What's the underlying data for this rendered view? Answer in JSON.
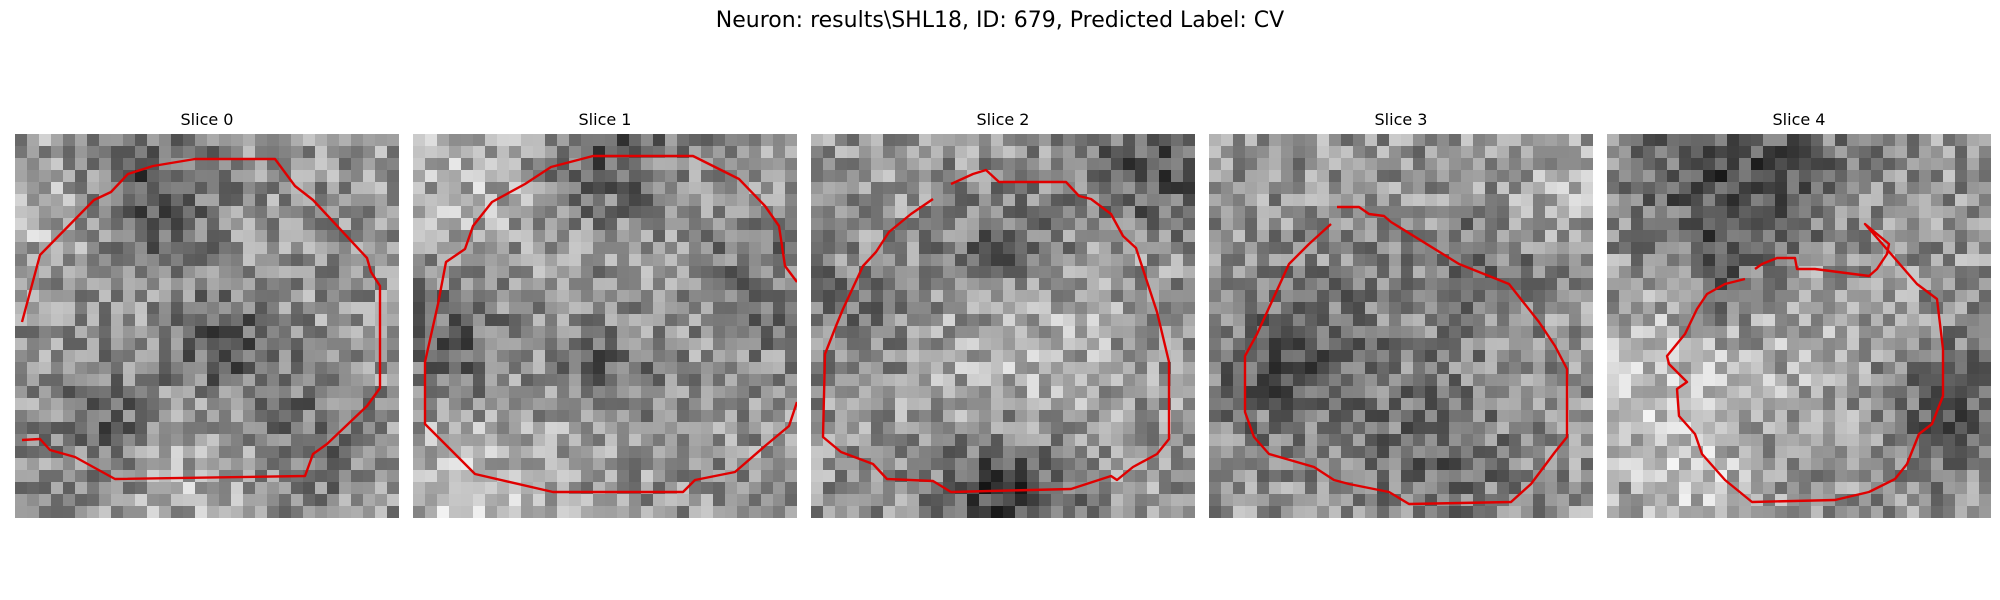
{
  "title": "Neuron: results\\SHL18, ID: 679, Predicted Label: CV",
  "contour_color": "#e00000",
  "panels": [
    {
      "title": "Slice 0",
      "seed": 11,
      "blobs": [
        [
          0.35,
          0.15,
          0.12,
          -70
        ],
        [
          0.55,
          0.55,
          0.1,
          -60
        ],
        [
          0.25,
          0.75,
          0.1,
          -50
        ],
        [
          0.75,
          0.8,
          0.12,
          -45
        ],
        [
          0.5,
          0.9,
          0.15,
          30
        ],
        [
          0.05,
          0.2,
          0.12,
          35
        ]
      ]
    },
    {
      "title": "Slice 1",
      "seed": 23,
      "blobs": [
        [
          0.5,
          0.05,
          0.12,
          -60
        ],
        [
          0.1,
          0.55,
          0.12,
          -55
        ],
        [
          0.5,
          0.62,
          0.08,
          -55
        ],
        [
          0.9,
          0.4,
          0.12,
          -40
        ],
        [
          0.1,
          0.95,
          0.2,
          40
        ],
        [
          0.15,
          0.1,
          0.15,
          30
        ]
      ]
    },
    {
      "title": "Slice 2",
      "seed": 37,
      "blobs": [
        [
          0.5,
          0.3,
          0.12,
          -55
        ],
        [
          0.5,
          0.95,
          0.12,
          -90
        ],
        [
          0.9,
          0.08,
          0.12,
          -70
        ],
        [
          0.1,
          0.45,
          0.1,
          -40
        ],
        [
          0.55,
          0.55,
          0.18,
          35
        ]
      ]
    },
    {
      "title": "Slice 3",
      "seed": 51,
      "blobs": [
        [
          0.2,
          0.6,
          0.15,
          -55
        ],
        [
          0.6,
          0.85,
          0.12,
          -50
        ],
        [
          0.7,
          0.35,
          0.1,
          -40
        ],
        [
          0.5,
          0.5,
          0.2,
          -15
        ],
        [
          0.9,
          0.15,
          0.1,
          25
        ]
      ]
    },
    {
      "title": "Slice 4",
      "seed": 67,
      "blobs": [
        [
          0.35,
          0.12,
          0.18,
          -80
        ],
        [
          0.9,
          0.7,
          0.12,
          -70
        ],
        [
          0.3,
          0.4,
          0.1,
          -30
        ],
        [
          0.15,
          0.6,
          0.15,
          45
        ],
        [
          0.55,
          0.5,
          0.15,
          30
        ],
        [
          0.2,
          0.9,
          0.12,
          40
        ]
      ]
    }
  ]
}
